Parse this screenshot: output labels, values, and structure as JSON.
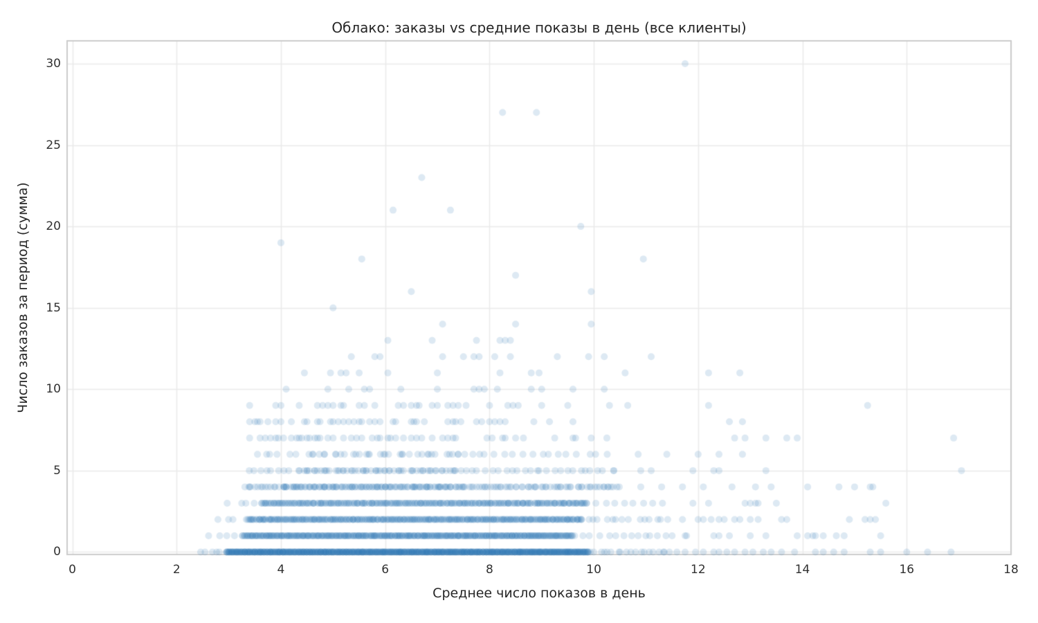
{
  "chart_data": {
    "type": "scatter",
    "title": "Облако: заказы vs средние показы в день (все клиенты)",
    "xlabel": "Среднее число показов в день",
    "ylabel": "Число заказов за период (сумма)",
    "xlim": [
      -0.1,
      18.0
    ],
    "ylim": [
      -0.15,
      31.4
    ],
    "x_ticks": [
      0,
      2,
      4,
      6,
      8,
      10,
      12,
      14,
      16,
      18
    ],
    "y_ticks": [
      0,
      5,
      10,
      15,
      20,
      25,
      30
    ],
    "grid": true,
    "legend_position": "none",
    "style": {
      "point_color": "#2e74b4",
      "point_alpha": 0.16,
      "point_radius": 5,
      "grid_color": "#ebebeb",
      "spine_color": "#cccccc",
      "title_color": "#262626",
      "tick_color": "#303030",
      "jitter_seed": 42
    },
    "rows": [
      {
        "y": 0,
        "bands": [
          [
            2.4,
            3.0,
            6,
            1
          ],
          [
            2.95,
            9.9,
            230,
            3
          ],
          [
            9.9,
            11.6,
            20,
            1
          ]
        ],
        "x": [
          11.75,
          11.95,
          12.1,
          12.3,
          12.4,
          12.55,
          12.7,
          12.9,
          13.05,
          13.25,
          13.4,
          13.6,
          13.85,
          14.25,
          14.4,
          14.6,
          14.8,
          15.3,
          15.5,
          16.0,
          16.4,
          16.85
        ]
      },
      {
        "y": 1,
        "bands": [
          [
            2.55,
            3.2,
            4,
            1
          ],
          [
            3.25,
            9.6,
            190,
            2
          ],
          [
            9.6,
            11.9,
            16,
            1
          ]
        ],
        "x": [
          12.3,
          12.4,
          12.6,
          13.0,
          13.3,
          13.9,
          14.1,
          14.2,
          14.25,
          14.4,
          14.65,
          14.8,
          15.5
        ]
      },
      {
        "y": 2,
        "bands": [
          [
            2.7,
            3.35,
            4,
            1
          ],
          [
            3.35,
            9.8,
            165,
            2
          ],
          [
            9.8,
            11.5,
            14,
            1
          ]
        ],
        "x": [
          11.7,
          12.0,
          12.1,
          12.25,
          12.4,
          12.5,
          12.7,
          12.8,
          13.0,
          13.15,
          13.6,
          13.7,
          14.9,
          15.2,
          15.3,
          15.4
        ]
      },
      {
        "y": 3,
        "bands": [
          [
            2.95,
            3.6,
            4,
            1
          ],
          [
            3.6,
            9.9,
            135,
            2
          ],
          [
            9.9,
            11.4,
            8,
            1
          ]
        ],
        "x": [
          11.9,
          12.2,
          12.9,
          13.0,
          13.1,
          13.15,
          13.5,
          15.6
        ]
      },
      {
        "y": 4,
        "bands": [
          [
            3.3,
            10.5,
            75,
            2
          ],
          [
            4.0,
            7.5,
            50,
            1
          ]
        ],
        "x": [
          10.9,
          11.3,
          11.7,
          12.1,
          12.65,
          13.1,
          13.4,
          14.1,
          14.7,
          15.0,
          15.3,
          15.35
        ]
      },
      {
        "y": 5,
        "bands": [
          [
            3.3,
            10.5,
            60,
            1
          ],
          [
            4.3,
            7.4,
            35,
            1
          ]
        ],
        "x": [
          10.9,
          11.1,
          11.9,
          12.3,
          12.4,
          13.3,
          17.05
        ]
      },
      {
        "y": 6,
        "bands": [
          [
            3.4,
            10.3,
            40,
            1
          ],
          [
            4.4,
            7.6,
            18,
            1
          ]
        ],
        "x": [
          10.85,
          11.4,
          12.0,
          12.4,
          12.85
        ]
      },
      {
        "y": 7,
        "bands": [],
        "x": [
          3.4,
          3.6,
          3.7,
          3.8,
          3.9,
          3.95,
          4.05,
          4.2,
          4.3,
          4.35,
          4.4,
          4.5,
          4.55,
          4.65,
          4.7,
          4.75,
          4.9,
          5.0,
          5.2,
          5.35,
          5.45,
          5.55,
          5.75,
          5.85,
          5.9,
          6.05,
          6.1,
          6.2,
          6.35,
          6.5,
          6.6,
          6.7,
          6.9,
          7.1,
          7.2,
          7.3,
          7.35,
          7.95,
          8.05,
          8.25,
          8.3,
          8.5,
          8.65,
          9.25,
          9.6,
          9.65,
          9.95,
          10.25,
          12.7,
          12.9,
          13.3,
          13.7,
          13.9,
          16.9
        ]
      },
      {
        "y": 8,
        "bands": [],
        "x": [
          3.4,
          3.5,
          3.55,
          3.6,
          3.75,
          3.9,
          4.0,
          4.2,
          4.45,
          4.5,
          4.7,
          4.75,
          4.95,
          5.0,
          5.1,
          5.2,
          5.3,
          5.4,
          5.5,
          5.55,
          5.7,
          5.8,
          5.9,
          6.15,
          6.2,
          6.5,
          6.55,
          6.6,
          6.75,
          7.2,
          7.3,
          7.35,
          7.45,
          7.75,
          7.85,
          8.0,
          8.1,
          8.2,
          8.3,
          8.85,
          9.15,
          9.6,
          12.6,
          12.85
        ]
      },
      {
        "y": 9,
        "bands": [],
        "x": [
          3.4,
          3.9,
          4.0,
          4.35,
          4.7,
          4.8,
          4.9,
          5.0,
          5.15,
          5.2,
          5.5,
          5.6,
          5.8,
          6.25,
          6.35,
          6.5,
          6.6,
          6.65,
          6.9,
          7.0,
          7.2,
          7.3,
          7.4,
          7.55,
          8.0,
          8.35,
          8.45,
          8.55,
          9.0,
          9.5,
          10.3,
          10.65,
          12.2,
          15.25
        ]
      },
      {
        "y": 10,
        "bands": [],
        "x": [
          4.1,
          4.9,
          5.3,
          5.6,
          5.7,
          6.3,
          7.0,
          7.7,
          7.8,
          7.9,
          8.15,
          8.8,
          9.0,
          9.6,
          10.2
        ]
      },
      {
        "y": 11,
        "bands": [],
        "x": [
          4.45,
          4.95,
          5.15,
          5.25,
          5.5,
          6.05,
          7.0,
          8.2,
          8.8,
          8.95,
          10.6,
          12.2,
          12.8
        ]
      },
      {
        "y": 12,
        "bands": [],
        "x": [
          5.35,
          5.8,
          5.9,
          7.1,
          7.5,
          7.7,
          7.8,
          8.1,
          8.4,
          9.3,
          9.9,
          10.2,
          11.1
        ]
      },
      {
        "y": 13,
        "bands": [],
        "x": [
          6.05,
          6.9,
          7.75,
          8.2,
          8.3,
          8.4
        ]
      },
      {
        "y": 14,
        "bands": [],
        "x": [
          7.1,
          8.5,
          9.95
        ]
      },
      {
        "y": 15,
        "bands": [],
        "x": [
          5.0
        ]
      },
      {
        "y": 16,
        "bands": [],
        "x": [
          6.5,
          9.95
        ]
      },
      {
        "y": 17,
        "bands": [],
        "x": [
          8.5
        ]
      },
      {
        "y": 18,
        "bands": [],
        "x": [
          5.55,
          10.95
        ]
      },
      {
        "y": 19,
        "bands": [],
        "x": [
          4.0
        ]
      },
      {
        "y": 20,
        "bands": [],
        "x": [
          9.75
        ]
      },
      {
        "y": 21,
        "bands": [],
        "x": [
          6.15,
          7.25
        ]
      },
      {
        "y": 23,
        "bands": [],
        "x": [
          6.7
        ]
      },
      {
        "y": 27,
        "bands": [],
        "x": [
          8.25,
          8.9
        ]
      },
      {
        "y": 30,
        "bands": [],
        "x": [
          11.75
        ]
      }
    ]
  }
}
